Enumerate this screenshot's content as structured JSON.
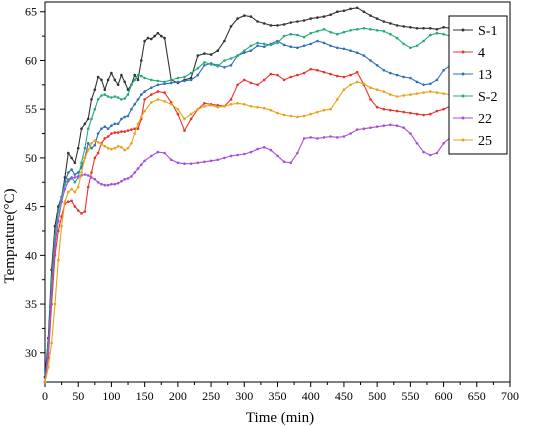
{
  "chart_data": {
    "type": "line",
    "title": "",
    "xlabel": "Time (min)",
    "ylabel": "Temprature(°C)",
    "xlim": [
      0,
      700
    ],
    "ylim": [
      27,
      66
    ],
    "xticks": [
      0,
      50,
      100,
      150,
      200,
      250,
      300,
      350,
      400,
      450,
      500,
      550,
      600,
      650,
      700
    ],
    "yticks": [
      30,
      35,
      40,
      45,
      50,
      55,
      60,
      65
    ],
    "xtick_labels": [
      "0",
      "50",
      "100",
      "150",
      "200",
      "250",
      "300",
      "350",
      "400",
      "450",
      "500",
      "550",
      "600",
      "650",
      "700"
    ],
    "ytick_labels": [
      "30",
      "35",
      "40",
      "45",
      "50",
      "55",
      "60",
      "65"
    ],
    "grid": false,
    "legend_position": "top-right",
    "series": [
      {
        "name": "S-1",
        "color": "#333333",
        "x": [
          0,
          5,
          10,
          15,
          20,
          25,
          30,
          35,
          40,
          45,
          50,
          55,
          60,
          65,
          70,
          75,
          80,
          85,
          90,
          95,
          100,
          105,
          110,
          115,
          120,
          125,
          130,
          135,
          140,
          145,
          150,
          155,
          160,
          165,
          170,
          175,
          180,
          190,
          200,
          210,
          220,
          230,
          240,
          250,
          260,
          270,
          280,
          290,
          300,
          310,
          320,
          330,
          340,
          350,
          360,
          370,
          380,
          390,
          400,
          410,
          420,
          430,
          440,
          450,
          460,
          470,
          480,
          490,
          500,
          510,
          520,
          530,
          540,
          550,
          560,
          570,
          580,
          590,
          600,
          610,
          620,
          630
        ],
        "y": [
          27.5,
          31.5,
          38.5,
          43,
          45,
          46,
          48,
          50.5,
          50,
          49.5,
          51,
          53,
          53.5,
          54,
          56,
          57,
          58.3,
          58,
          57,
          58,
          58.7,
          58,
          57.5,
          58.5,
          57.8,
          57,
          57.5,
          58.5,
          58,
          60,
          62,
          62.3,
          62.2,
          62.5,
          62.8,
          62.5,
          62.3,
          58,
          57.7,
          58,
          58.2,
          60.5,
          60.7,
          60.6,
          61,
          62,
          63.5,
          64.3,
          64.6,
          64.5,
          64,
          63.8,
          63.6,
          63.6,
          63.7,
          63.9,
          64,
          64.1,
          64.3,
          64.4,
          64.5,
          64.7,
          65,
          65.1,
          65.3,
          65.4,
          65,
          64.6,
          64.3,
          64,
          63.8,
          63.6,
          63.5,
          63.4,
          63.3,
          63.3,
          63.3,
          63.2,
          63.4,
          63.3,
          63.1,
          63.9
        ]
      },
      {
        "name": "4",
        "color": "#e8332c",
        "x": [
          0,
          5,
          10,
          15,
          20,
          25,
          30,
          35,
          40,
          45,
          50,
          55,
          60,
          65,
          70,
          75,
          80,
          85,
          90,
          95,
          100,
          105,
          110,
          115,
          120,
          125,
          130,
          135,
          140,
          145,
          150,
          160,
          170,
          180,
          190,
          200,
          210,
          220,
          230,
          240,
          250,
          260,
          270,
          280,
          290,
          300,
          310,
          320,
          330,
          340,
          350,
          360,
          370,
          380,
          390,
          400,
          410,
          420,
          430,
          440,
          450,
          460,
          470,
          480,
          490,
          500,
          510,
          520,
          530,
          540,
          550,
          560,
          570,
          580,
          590,
          600,
          610,
          620,
          630
        ],
        "y": [
          27,
          29.5,
          35,
          40,
          42.5,
          44,
          45.3,
          45.5,
          45.6,
          45,
          44.6,
          44.3,
          44.5,
          47,
          48.5,
          50,
          50.5,
          51.5,
          52,
          52.2,
          52.5,
          52.6,
          52.6,
          52.7,
          52.7,
          52.8,
          52.9,
          53,
          53,
          54,
          56,
          56.5,
          56.8,
          56.7,
          55.7,
          54.5,
          52.8,
          54,
          55,
          55.6,
          55.5,
          55.4,
          55.3,
          56,
          57.5,
          58,
          57.7,
          57.5,
          58,
          58.6,
          58.5,
          58,
          58.3,
          58.5,
          58.7,
          59.1,
          59,
          58.8,
          58.6,
          58.4,
          58.3,
          58.5,
          58.8,
          57.5,
          56,
          55.2,
          55,
          54.9,
          54.8,
          54.7,
          54.6,
          54.5,
          54.4,
          54.5,
          54.8,
          55,
          55.3,
          55.8,
          56.4
        ]
      },
      {
        "name": "13",
        "color": "#2f6fb8",
        "x": [
          0,
          5,
          10,
          15,
          20,
          25,
          30,
          35,
          40,
          45,
          50,
          55,
          60,
          65,
          70,
          75,
          80,
          85,
          90,
          95,
          100,
          105,
          110,
          115,
          120,
          125,
          130,
          135,
          140,
          145,
          150,
          160,
          170,
          180,
          190,
          200,
          210,
          220,
          230,
          240,
          250,
          260,
          270,
          280,
          290,
          300,
          310,
          320,
          330,
          340,
          350,
          360,
          370,
          380,
          390,
          400,
          410,
          420,
          430,
          440,
          450,
          460,
          470,
          480,
          490,
          500,
          510,
          520,
          530,
          540,
          550,
          560,
          570,
          580,
          590,
          600,
          610,
          620,
          630
        ],
        "y": [
          27,
          31,
          37,
          42,
          44.5,
          46,
          47.5,
          48.5,
          48.8,
          48.3,
          48.5,
          49,
          50,
          51.5,
          51,
          51.3,
          52.5,
          53,
          53.2,
          53,
          53.3,
          53.5,
          53.5,
          54,
          54.2,
          54.3,
          55,
          55.5,
          56,
          56.5,
          56.8,
          57.2,
          57.5,
          57.6,
          57.7,
          57.8,
          57.9,
          58,
          58.5,
          59.5,
          59.7,
          59.5,
          59.3,
          59.5,
          60.5,
          60.8,
          61,
          61.5,
          61.4,
          61.7,
          62,
          61.6,
          61.4,
          61.3,
          61.5,
          61.7,
          62,
          61.8,
          61.5,
          61.3,
          61.2,
          61,
          60.8,
          60.5,
          60,
          59.5,
          59,
          58.7,
          58.5,
          58.3,
          58.2,
          57.8,
          57.5,
          57.6,
          58,
          59,
          59.5,
          59.8,
          58.3
        ]
      },
      {
        "name": "S-2",
        "color": "#27a87d",
        "x": [
          0,
          5,
          10,
          15,
          20,
          25,
          30,
          35,
          40,
          45,
          50,
          55,
          60,
          65,
          70,
          75,
          80,
          85,
          90,
          95,
          100,
          105,
          110,
          115,
          120,
          125,
          130,
          135,
          140,
          145,
          150,
          160,
          170,
          180,
          190,
          200,
          210,
          220,
          230,
          240,
          250,
          260,
          270,
          280,
          290,
          300,
          310,
          320,
          330,
          340,
          350,
          360,
          370,
          380,
          390,
          400,
          410,
          420,
          430,
          440,
          450,
          460,
          470,
          480,
          490,
          500,
          510,
          520,
          530,
          540,
          550,
          560,
          570,
          580,
          590,
          600,
          610,
          620,
          630
        ],
        "y": [
          27,
          30.5,
          37.5,
          42,
          44.5,
          46,
          47.3,
          47.8,
          48,
          47.5,
          48,
          49.5,
          51,
          53,
          54,
          55,
          56,
          56.4,
          56.5,
          56.3,
          56.2,
          56.3,
          56.2,
          56,
          56.1,
          56.5,
          57.5,
          58,
          58.5,
          58.4,
          58.2,
          58,
          57.9,
          57.8,
          58,
          58.2,
          58.3,
          58.7,
          59.2,
          59.8,
          59.6,
          59.4,
          60,
          60.2,
          60.5,
          61,
          61.5,
          61.8,
          61.7,
          61.6,
          61.8,
          62.5,
          62.7,
          62.6,
          62.4,
          62.8,
          63,
          63.2,
          62.9,
          62.7,
          62.9,
          63.1,
          63.2,
          63.3,
          63.2,
          63.1,
          63,
          62.7,
          62.3,
          61.7,
          61.3,
          61.5,
          62,
          62.6,
          62.8,
          62.7,
          62.5,
          62.3,
          62.4
        ]
      },
      {
        "name": "22",
        "color": "#a64fd8",
        "x": [
          0,
          5,
          10,
          15,
          20,
          25,
          30,
          35,
          40,
          45,
          50,
          55,
          60,
          65,
          70,
          75,
          80,
          85,
          90,
          95,
          100,
          105,
          110,
          115,
          120,
          125,
          130,
          135,
          140,
          145,
          150,
          160,
          170,
          180,
          190,
          200,
          210,
          220,
          230,
          240,
          250,
          260,
          270,
          280,
          290,
          300,
          310,
          320,
          330,
          340,
          350,
          360,
          370,
          380,
          390,
          400,
          410,
          420,
          430,
          440,
          450,
          460,
          470,
          480,
          490,
          500,
          510,
          520,
          530,
          540,
          550,
          560,
          570,
          580,
          590,
          600,
          610,
          620,
          630
        ],
        "y": [
          27,
          30,
          36,
          41,
          43.5,
          45.5,
          46.8,
          47.6,
          47.9,
          48,
          48.1,
          48.2,
          48.3,
          48.2,
          48,
          47.8,
          47.5,
          47.3,
          47.2,
          47.2,
          47.3,
          47.3,
          47.4,
          47.6,
          47.8,
          47.9,
          48.1,
          48.5,
          48.9,
          49.3,
          49.7,
          50.2,
          50.6,
          50.5,
          49.8,
          49.5,
          49.4,
          49.4,
          49.5,
          49.6,
          49.7,
          49.8,
          50,
          50.2,
          50.3,
          50.4,
          50.6,
          50.9,
          51.1,
          50.8,
          50.2,
          49.6,
          49.5,
          50.5,
          52,
          52.1,
          52,
          52.1,
          52.2,
          52.1,
          52.2,
          52.5,
          52.9,
          53,
          53.1,
          53.2,
          53.3,
          53.4,
          53.3,
          53.1,
          52.5,
          51.5,
          50.6,
          50.3,
          50.5,
          51.5,
          52.1,
          52,
          52.2
        ]
      },
      {
        "name": "25",
        "color": "#e8a317",
        "x": [
          0,
          5,
          10,
          15,
          20,
          25,
          30,
          35,
          40,
          45,
          50,
          55,
          60,
          65,
          70,
          75,
          80,
          85,
          90,
          95,
          100,
          105,
          110,
          115,
          120,
          125,
          130,
          135,
          140,
          145,
          150,
          160,
          170,
          180,
          190,
          200,
          210,
          220,
          230,
          240,
          250,
          260,
          270,
          280,
          290,
          300,
          310,
          320,
          330,
          340,
          350,
          360,
          370,
          380,
          390,
          400,
          410,
          420,
          430,
          440,
          450,
          460,
          470,
          480,
          490,
          500,
          510,
          520,
          530,
          540,
          550,
          560,
          570,
          580,
          590,
          600,
          610,
          620,
          630
        ],
        "y": [
          27,
          28.5,
          31,
          35,
          39.5,
          43,
          45.5,
          46.5,
          46.8,
          46.5,
          47,
          48.5,
          50,
          50.8,
          51.5,
          51.8,
          51.6,
          51.4,
          51.2,
          51,
          50.9,
          51,
          51.2,
          51.1,
          50.8,
          51,
          51.5,
          52.5,
          53.5,
          54.2,
          54.8,
          55.7,
          56,
          55.8,
          55.5,
          55,
          54,
          54.5,
          55,
          55.3,
          55.4,
          55.2,
          55.3,
          55.5,
          55.6,
          55.5,
          55.3,
          55.2,
          55.1,
          54.9,
          54.6,
          54.4,
          54.3,
          54.2,
          54.3,
          54.5,
          54.7,
          54.9,
          55,
          56,
          57,
          57.5,
          57.8,
          57.6,
          57.2,
          57,
          56.8,
          56.5,
          56.3,
          56.4,
          56.5,
          56.6,
          56.7,
          56.8,
          56.7,
          56.6,
          56.5,
          56.4,
          56.5
        ]
      }
    ]
  }
}
